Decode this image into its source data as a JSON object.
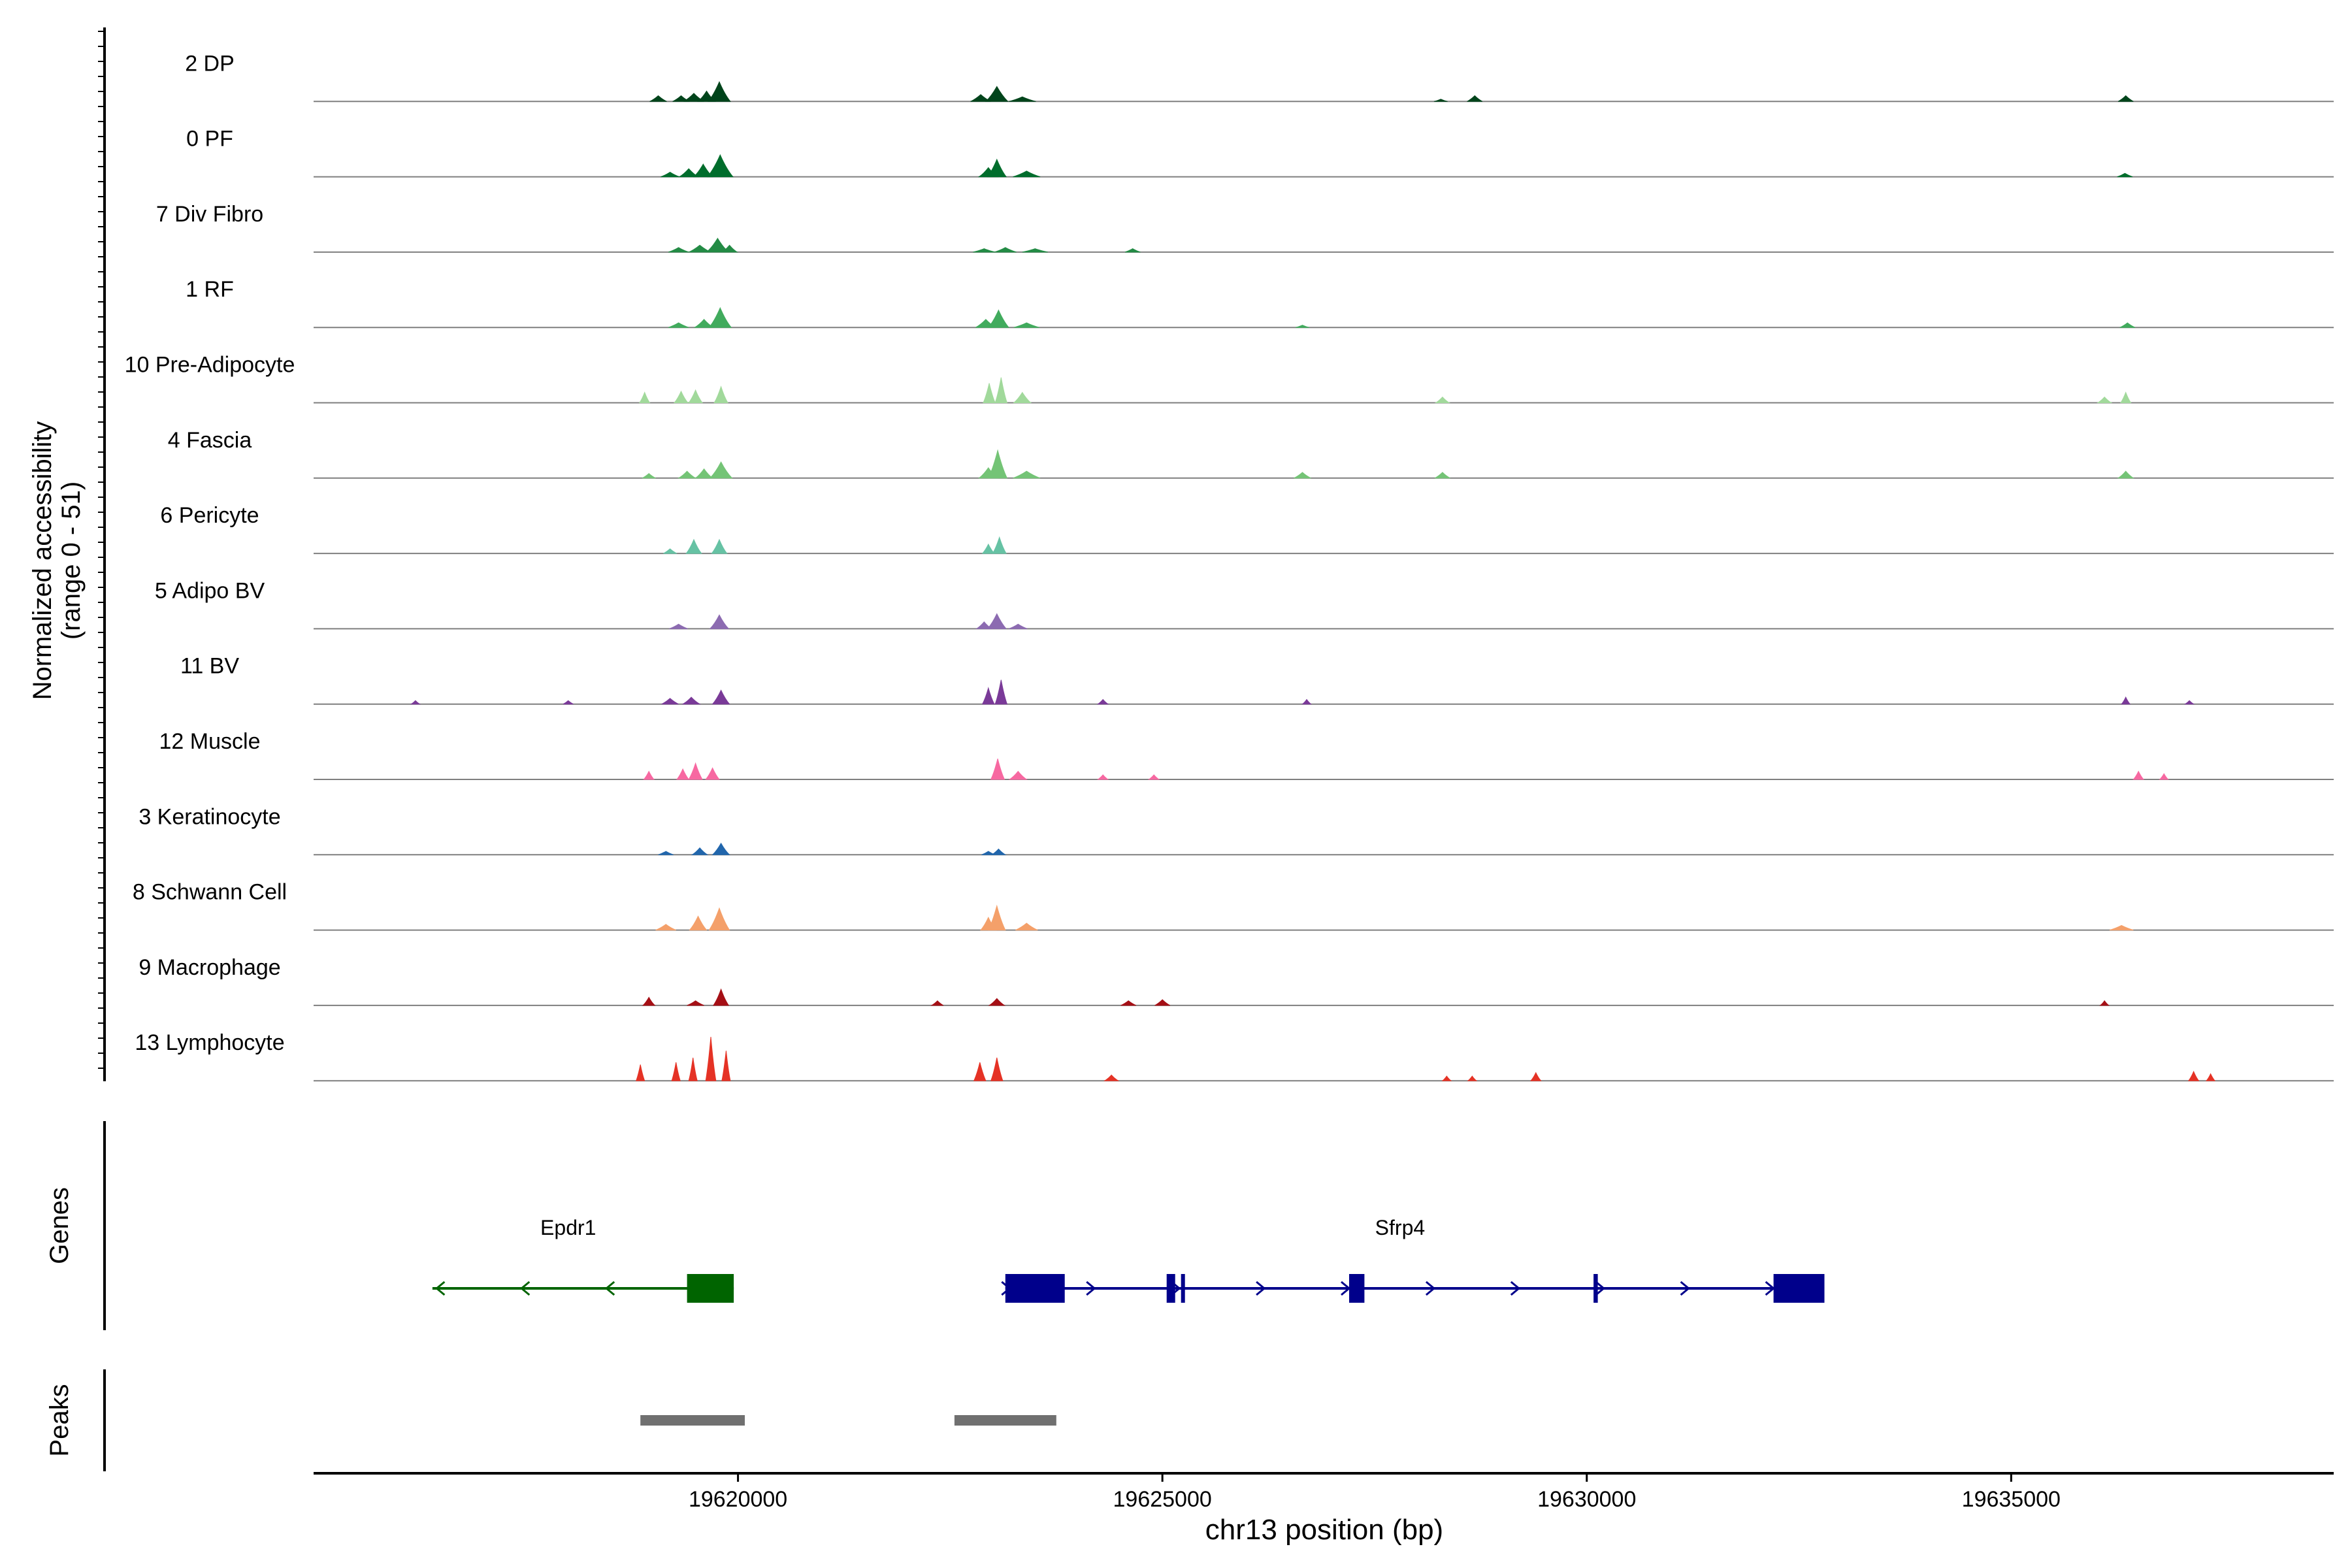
{
  "chart_data": {
    "type": "area",
    "title": "",
    "ylabel_line1": "Normalized accessibility",
    "ylabel_line2": "(range 0 - 51)",
    "xlabel": "chr13 position (bp)",
    "xlim": [
      19615000,
      19638800
    ],
    "xticks": [
      19620000,
      19625000,
      19630000,
      19635000
    ],
    "xtick_labels": [
      "19620000",
      "19625000",
      "19630000",
      "19635000"
    ],
    "ylim": [
      0,
      51
    ],
    "tracks": [
      {
        "name": "2 DP",
        "color": "#00441b",
        "peaks": [
          [
            19619060,
            100,
            5
          ],
          [
            19619330,
            100,
            5
          ],
          [
            19619480,
            120,
            7
          ],
          [
            19619630,
            100,
            9
          ],
          [
            19619780,
            130,
            17
          ],
          [
            19622860,
            120,
            6
          ],
          [
            19623050,
            130,
            13
          ],
          [
            19623350,
            160,
            4
          ],
          [
            19628280,
            80,
            2
          ],
          [
            19628680,
            90,
            5
          ],
          [
            19636350,
            90,
            5
          ]
        ]
      },
      {
        "name": "0 PF",
        "color": "#006d2c",
        "peaks": [
          [
            19619200,
            110,
            4
          ],
          [
            19619420,
            110,
            7
          ],
          [
            19619590,
            110,
            11
          ],
          [
            19619790,
            150,
            19
          ],
          [
            19622950,
            110,
            8
          ],
          [
            19623050,
            110,
            15
          ],
          [
            19623400,
            160,
            5
          ],
          [
            19636340,
            90,
            3
          ]
        ]
      },
      {
        "name": "7 Div Fibro",
        "color": "#238b45",
        "peaks": [
          [
            19619300,
            120,
            4
          ],
          [
            19619550,
            130,
            6
          ],
          [
            19619760,
            130,
            12
          ],
          [
            19619900,
            90,
            6
          ],
          [
            19622900,
            130,
            3
          ],
          [
            19623150,
            130,
            4
          ],
          [
            19623500,
            150,
            3
          ],
          [
            19624650,
            90,
            3
          ]
        ]
      },
      {
        "name": "1 RF",
        "color": "#41ab5d",
        "peaks": [
          [
            19619300,
            120,
            4
          ],
          [
            19619600,
            110,
            7
          ],
          [
            19619790,
            130,
            17
          ],
          [
            19622920,
            120,
            7
          ],
          [
            19623070,
            120,
            15
          ],
          [
            19623400,
            150,
            4
          ],
          [
            19626650,
            80,
            2
          ],
          [
            19636370,
            90,
            4
          ]
        ]
      },
      {
        "name": "10 Pre-Adipocyte",
        "color": "#a1d99b",
        "peaks": [
          [
            19618900,
            60,
            9
          ],
          [
            19619330,
            80,
            10
          ],
          [
            19619500,
            80,
            11
          ],
          [
            19619800,
            80,
            14
          ],
          [
            19622960,
            70,
            17
          ],
          [
            19623100,
            70,
            22
          ],
          [
            19623350,
            100,
            9
          ],
          [
            19628300,
            80,
            5
          ],
          [
            19636100,
            80,
            5
          ],
          [
            19636350,
            60,
            9
          ]
        ]
      },
      {
        "name": "4 Fascia",
        "color": "#74c476",
        "peaks": [
          [
            19618950,
            80,
            4
          ],
          [
            19619400,
            100,
            6
          ],
          [
            19619600,
            100,
            8
          ],
          [
            19619800,
            130,
            14
          ],
          [
            19622950,
            110,
            9
          ],
          [
            19623060,
            110,
            24
          ],
          [
            19623400,
            160,
            6
          ],
          [
            19626650,
            100,
            5
          ],
          [
            19628300,
            90,
            5
          ],
          [
            19636350,
            90,
            6
          ]
        ]
      },
      {
        "name": "6 Pericyte",
        "color": "#66c2a4",
        "peaks": [
          [
            19619200,
            80,
            4
          ],
          [
            19619480,
            90,
            12
          ],
          [
            19619780,
            90,
            12
          ],
          [
            19622950,
            70,
            8
          ],
          [
            19623080,
            80,
            14
          ]
        ]
      },
      {
        "name": "5 Adipo BV",
        "color": "#8c6bb1",
        "peaks": [
          [
            19619300,
            110,
            4
          ],
          [
            19619780,
            110,
            12
          ],
          [
            19622900,
            90,
            6
          ],
          [
            19623050,
            110,
            13
          ],
          [
            19623300,
            110,
            4
          ]
        ]
      },
      {
        "name": "11 BV",
        "color": "#7a3a98",
        "peaks": [
          [
            19616200,
            50,
            3
          ],
          [
            19618000,
            60,
            3
          ],
          [
            19619200,
            100,
            5
          ],
          [
            19619450,
            100,
            6
          ],
          [
            19619800,
            100,
            12
          ],
          [
            19622950,
            70,
            14
          ],
          [
            19623100,
            70,
            21
          ],
          [
            19624300,
            60,
            4
          ],
          [
            19626700,
            50,
            4
          ],
          [
            19636350,
            50,
            6
          ],
          [
            19637100,
            50,
            3
          ]
        ]
      },
      {
        "name": "12 Muscle",
        "color": "#f768a1",
        "peaks": [
          [
            19618950,
            60,
            7
          ],
          [
            19619350,
            70,
            9
          ],
          [
            19619500,
            80,
            14
          ],
          [
            19619700,
            80,
            10
          ],
          [
            19623060,
            80,
            18
          ],
          [
            19623300,
            100,
            7
          ],
          [
            19624300,
            60,
            4
          ],
          [
            19624900,
            60,
            4
          ],
          [
            19636500,
            60,
            7
          ],
          [
            19636800,
            50,
            5
          ]
        ]
      },
      {
        "name": "3 Keratinocyte",
        "color": "#2166ac",
        "peaks": [
          [
            19619150,
            90,
            3
          ],
          [
            19619550,
            90,
            6
          ],
          [
            19619800,
            100,
            10
          ],
          [
            19622950,
            80,
            3
          ],
          [
            19623070,
            80,
            5
          ]
        ]
      },
      {
        "name": "8 Schwann Cell",
        "color": "#f4a06a",
        "peaks": [
          [
            19619150,
            120,
            5
          ],
          [
            19619530,
            100,
            12
          ],
          [
            19619780,
            120,
            19
          ],
          [
            19622950,
            90,
            11
          ],
          [
            19623050,
            100,
            21
          ],
          [
            19623400,
            130,
            6
          ],
          [
            19636300,
            140,
            4
          ]
        ]
      },
      {
        "name": "9 Macrophage",
        "color": "#a50f15",
        "peaks": [
          [
            19618950,
            70,
            7
          ],
          [
            19619500,
            100,
            4
          ],
          [
            19619800,
            90,
            14
          ],
          [
            19622350,
            70,
            4
          ],
          [
            19623050,
            90,
            6
          ],
          [
            19624600,
            90,
            4
          ],
          [
            19625000,
            90,
            5
          ],
          [
            19636100,
            50,
            4
          ]
        ]
      },
      {
        "name": "13 Lymphocyte",
        "color": "#e53225",
        "peaks": [
          [
            19618850,
            50,
            14
          ],
          [
            19619270,
            50,
            16
          ],
          [
            19619470,
            50,
            20
          ],
          [
            19619680,
            60,
            38
          ],
          [
            19619860,
            50,
            26
          ],
          [
            19622850,
            70,
            16
          ],
          [
            19623050,
            70,
            20
          ],
          [
            19624400,
            80,
            5
          ],
          [
            19628350,
            50,
            4
          ],
          [
            19628650,
            50,
            4
          ],
          [
            19629400,
            60,
            7
          ],
          [
            19637150,
            60,
            8
          ],
          [
            19637350,
            50,
            6
          ]
        ]
      }
    ],
    "genes_label": "Genes",
    "genes": [
      {
        "name": "Epdr1",
        "color": "#006400",
        "strand": "-",
        "start": 19616400,
        "end": 19619950,
        "exons": [
          [
            19619400,
            19619950
          ]
        ],
        "label_pos": 19618000
      },
      {
        "name": "Sfrp4",
        "color": "#00008b",
        "strand": "+",
        "start": 19623150,
        "end": 19632800,
        "exons": [
          [
            19623150,
            19623850
          ],
          [
            19625050,
            19625150
          ],
          [
            19625220,
            19625260
          ],
          [
            19627200,
            19627380
          ],
          [
            19630080,
            19630130
          ],
          [
            19632200,
            19632800
          ]
        ],
        "label_pos": 19627800
      }
    ],
    "peaks_label": "Peaks",
    "peak_regions": [
      [
        19618850,
        19620080
      ],
      [
        19622550,
        19623750
      ]
    ]
  }
}
